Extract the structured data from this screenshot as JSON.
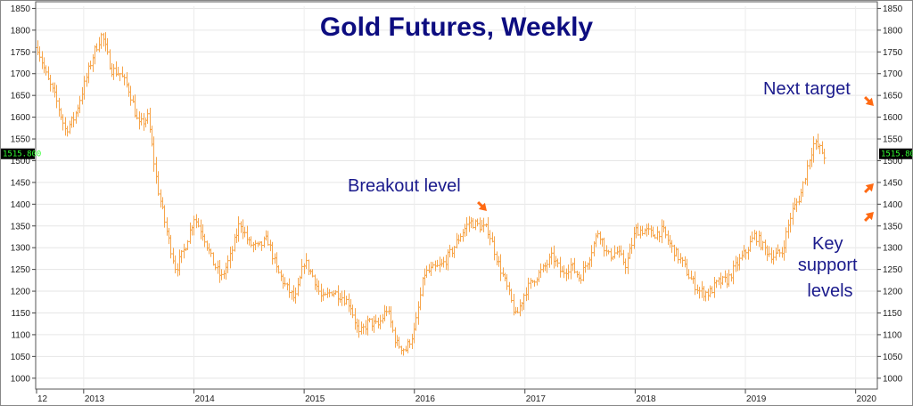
{
  "chart_data": {
    "type": "ohlc",
    "title": "Gold Futures, Weekly",
    "ylim": [
      975,
      1855
    ],
    "y_ticks": [
      1000,
      1050,
      1100,
      1150,
      1200,
      1250,
      1300,
      1350,
      1400,
      1450,
      1500,
      1550,
      1600,
      1650,
      1700,
      1750,
      1800,
      1850
    ],
    "x_ticks": [
      "12",
      "2013",
      "2014",
      "2015",
      "2016",
      "2017",
      "2018",
      "2019",
      "2020"
    ],
    "x_tick_dates": [
      "2012-08-01",
      "2013-01-01",
      "2014-01-01",
      "2015-01-01",
      "2016-01-01",
      "2017-01-01",
      "2018-01-01",
      "2019-01-01",
      "2020-01-01"
    ],
    "x_range": [
      "2012-08-01",
      "2020-03-01"
    ],
    "last_price": "1515.800",
    "grid": true,
    "bar_color": "#f7a54a",
    "anchors": [
      {
        "date": "2012-08-01",
        "value": 1760
      },
      {
        "date": "2012-09-01",
        "value": 1690
      },
      {
        "date": "2012-10-01",
        "value": 1640
      },
      {
        "date": "2012-11-01",
        "value": 1570
      },
      {
        "date": "2012-12-01",
        "value": 1600
      },
      {
        "date": "2013-02-01",
        "value": 1745
      },
      {
        "date": "2013-03-01",
        "value": 1790
      },
      {
        "date": "2013-04-01",
        "value": 1710
      },
      {
        "date": "2013-05-01",
        "value": 1700
      },
      {
        "date": "2013-06-01",
        "value": 1660
      },
      {
        "date": "2013-07-01",
        "value": 1580
      },
      {
        "date": "2013-08-01",
        "value": 1600
      },
      {
        "date": "2013-09-01",
        "value": 1440
      },
      {
        "date": "2013-10-01",
        "value": 1340
      },
      {
        "date": "2013-11-01",
        "value": 1250
      },
      {
        "date": "2013-12-01",
        "value": 1300
      },
      {
        "date": "2014-01-01",
        "value": 1370
      },
      {
        "date": "2014-02-01",
        "value": 1330
      },
      {
        "date": "2014-03-01",
        "value": 1270
      },
      {
        "date": "2014-04-01",
        "value": 1230
      },
      {
        "date": "2014-05-01",
        "value": 1280
      },
      {
        "date": "2014-06-01",
        "value": 1360
      },
      {
        "date": "2014-07-01",
        "value": 1310
      },
      {
        "date": "2014-08-01",
        "value": 1300
      },
      {
        "date": "2014-09-01",
        "value": 1320
      },
      {
        "date": "2014-10-01",
        "value": 1250
      },
      {
        "date": "2014-11-01",
        "value": 1210
      },
      {
        "date": "2014-12-01",
        "value": 1180
      },
      {
        "date": "2015-01-01",
        "value": 1270
      },
      {
        "date": "2015-02-01",
        "value": 1230
      },
      {
        "date": "2015-03-01",
        "value": 1180
      },
      {
        "date": "2015-04-01",
        "value": 1200
      },
      {
        "date": "2015-05-01",
        "value": 1190
      },
      {
        "date": "2015-06-01",
        "value": 1170
      },
      {
        "date": "2015-07-01",
        "value": 1100
      },
      {
        "date": "2015-08-01",
        "value": 1130
      },
      {
        "date": "2015-09-01",
        "value": 1120
      },
      {
        "date": "2015-10-01",
        "value": 1160
      },
      {
        "date": "2015-11-01",
        "value": 1080
      },
      {
        "date": "2015-12-01",
        "value": 1065
      },
      {
        "date": "2016-01-01",
        "value": 1110
      },
      {
        "date": "2016-02-01",
        "value": 1240
      },
      {
        "date": "2016-03-01",
        "value": 1250
      },
      {
        "date": "2016-04-01",
        "value": 1260
      },
      {
        "date": "2016-05-01",
        "value": 1290
      },
      {
        "date": "2016-06-01",
        "value": 1330
      },
      {
        "date": "2016-07-01",
        "value": 1360
      },
      {
        "date": "2016-08-01",
        "value": 1350
      },
      {
        "date": "2016-09-01",
        "value": 1340
      },
      {
        "date": "2016-10-01",
        "value": 1270
      },
      {
        "date": "2016-11-01",
        "value": 1210
      },
      {
        "date": "2016-12-01",
        "value": 1140
      },
      {
        "date": "2017-01-01",
        "value": 1200
      },
      {
        "date": "2017-02-01",
        "value": 1230
      },
      {
        "date": "2017-03-01",
        "value": 1250
      },
      {
        "date": "2017-04-01",
        "value": 1280
      },
      {
        "date": "2017-05-01",
        "value": 1240
      },
      {
        "date": "2017-06-01",
        "value": 1260
      },
      {
        "date": "2017-07-01",
        "value": 1230
      },
      {
        "date": "2017-08-01",
        "value": 1280
      },
      {
        "date": "2017-09-01",
        "value": 1340
      },
      {
        "date": "2017-10-01",
        "value": 1280
      },
      {
        "date": "2017-11-01",
        "value": 1290
      },
      {
        "date": "2017-12-01",
        "value": 1260
      },
      {
        "date": "2018-01-01",
        "value": 1340
      },
      {
        "date": "2018-02-01",
        "value": 1340
      },
      {
        "date": "2018-03-01",
        "value": 1330
      },
      {
        "date": "2018-04-01",
        "value": 1340
      },
      {
        "date": "2018-05-01",
        "value": 1300
      },
      {
        "date": "2018-06-01",
        "value": 1270
      },
      {
        "date": "2018-07-01",
        "value": 1230
      },
      {
        "date": "2018-08-01",
        "value": 1200
      },
      {
        "date": "2018-09-01",
        "value": 1195
      },
      {
        "date": "2018-10-01",
        "value": 1220
      },
      {
        "date": "2018-11-01",
        "value": 1225
      },
      {
        "date": "2018-12-01",
        "value": 1260
      },
      {
        "date": "2019-01-01",
        "value": 1290
      },
      {
        "date": "2019-02-01",
        "value": 1330
      },
      {
        "date": "2019-03-01",
        "value": 1300
      },
      {
        "date": "2019-04-01",
        "value": 1280
      },
      {
        "date": "2019-05-01",
        "value": 1290
      },
      {
        "date": "2019-06-01",
        "value": 1380
      },
      {
        "date": "2019-07-01",
        "value": 1420
      },
      {
        "date": "2019-08-01",
        "value": 1510
      },
      {
        "date": "2019-08-15",
        "value": 1540
      },
      {
        "date": "2019-09-01",
        "value": 1530
      },
      {
        "date": "2019-09-20",
        "value": 1510
      }
    ],
    "annotations": [
      {
        "text": "Breakout level",
        "arrow_date": "2016-06-01",
        "arrow_value": 1375
      },
      {
        "text": "Next target",
        "arrow_value": 1640
      },
      {
        "text": "Key support levels",
        "lines": [
          "Key",
          "support",
          "levels"
        ],
        "arrow_values": [
          1440,
          1380
        ]
      }
    ]
  }
}
